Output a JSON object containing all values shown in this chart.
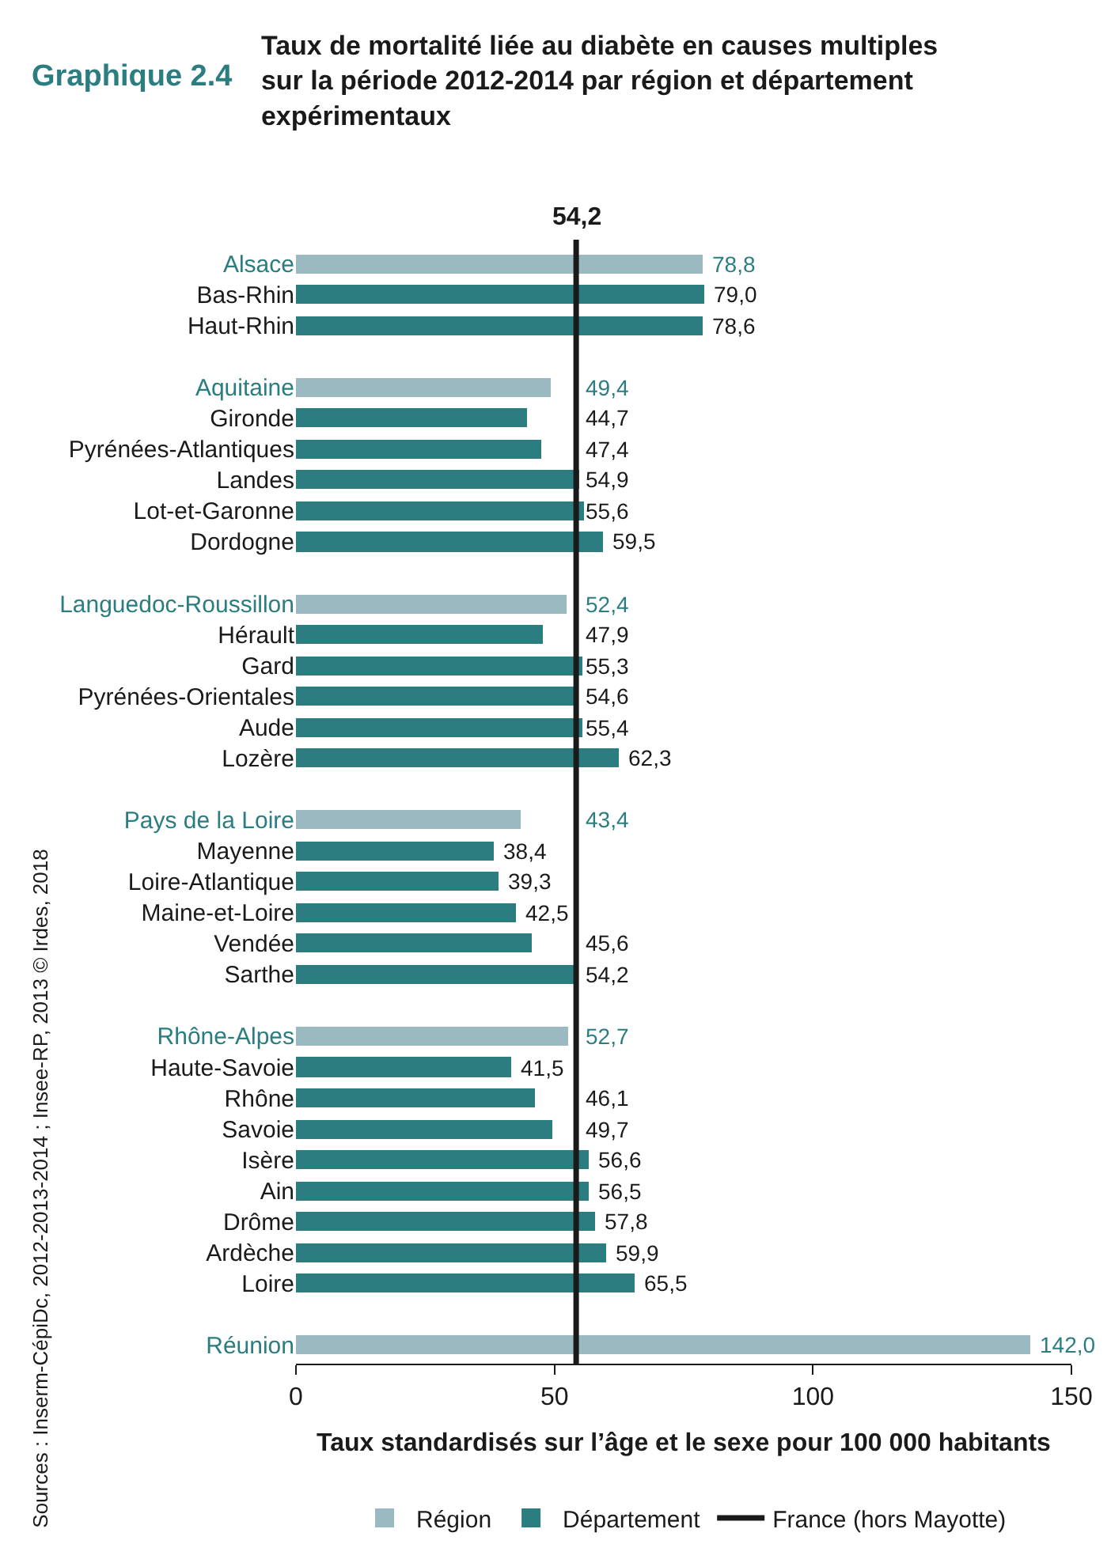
{
  "chart_data": {
    "type": "bar",
    "orientation": "horizontal",
    "title": "Taux de mortalité liée au diabète en causes multiples sur la période 2012-2014 par région et département expérimentaux",
    "xlabel": "Taux standardisés sur l’âge et le sexe pour 100 000 habitants",
    "categories": [
      "Alsace",
      "Bas-Rhin",
      "Haut-Rhin",
      null,
      "Aquitaine",
      "Gironde",
      "Pyrénées-Atlantiques",
      "Landes",
      "Lot-et-Garonne",
      "Dordogne",
      null,
      "Languedoc-Roussillon",
      "Hérault",
      "Gard",
      "Pyrénées-Orientales",
      "Aude",
      "Lozère",
      null,
      "Pays de la Loire",
      "Mayenne",
      "Loire-Atlantique",
      "Maine-et-Loire",
      "Vendée",
      "Sarthe",
      null,
      "Rhône-Alpes",
      "Haute-Savoie",
      "Rhône",
      "Savoie",
      "Isère",
      "Ain",
      "Drôme",
      "Ardèche",
      "Loire",
      null,
      "Réunion"
    ],
    "series": [
      {
        "name": "Région",
        "color": "#9bb9c0",
        "values": [
          78.8,
          null,
          null,
          null,
          49.4,
          null,
          null,
          null,
          null,
          null,
          null,
          52.4,
          null,
          null,
          null,
          null,
          null,
          null,
          43.4,
          null,
          null,
          null,
          null,
          null,
          null,
          52.7,
          null,
          null,
          null,
          null,
          null,
          null,
          null,
          null,
          null,
          142.0
        ],
        "value_labels": [
          "78,8",
          null,
          null,
          null,
          "49,4",
          null,
          null,
          null,
          null,
          null,
          null,
          "52,4",
          null,
          null,
          null,
          null,
          null,
          null,
          "43,4",
          null,
          null,
          null,
          null,
          null,
          null,
          "52,7",
          null,
          null,
          null,
          null,
          null,
          null,
          null,
          null,
          null,
          "142,0"
        ]
      },
      {
        "name": "Département",
        "color": "#2b7d80",
        "values": [
          null,
          79.0,
          78.6,
          null,
          null,
          44.7,
          47.4,
          54.9,
          55.6,
          59.5,
          null,
          null,
          47.9,
          55.3,
          54.6,
          55.4,
          62.3,
          null,
          null,
          38.4,
          39.3,
          42.5,
          45.6,
          54.2,
          null,
          null,
          41.5,
          46.1,
          49.7,
          56.6,
          56.5,
          57.8,
          59.9,
          65.5,
          null,
          null
        ],
        "value_labels": [
          null,
          "79,0",
          "78,6",
          null,
          null,
          "44,7",
          "47,4",
          "54,9",
          "55,6",
          "59,5",
          null,
          null,
          "47,9",
          "55,3",
          "54,6",
          "55,4",
          "62,3",
          null,
          null,
          "38,4",
          "39,3",
          "42,5",
          "45,6",
          "54,2",
          null,
          null,
          "41,5",
          "46,1",
          "49,7",
          "56,6",
          "56,5",
          "57,8",
          "59,9",
          "65,5",
          null,
          null
        ]
      }
    ],
    "xlim": [
      0,
      150
    ],
    "xticks": [
      0,
      50,
      100,
      150
    ],
    "ref_lines": [
      {
        "axis": "x",
        "value": 54.2,
        "label": "France (hors Mayotte)",
        "color": "#1a1a1a"
      }
    ],
    "annotations": [
      "Graphique 2.4",
      "54,2",
      "Sources : Inserm-CépiDc, 2012-2013-2014 ; Insee-RP, 2013 © Irdes, 2018"
    ],
    "legend": "bottom",
    "grid": false
  }
}
